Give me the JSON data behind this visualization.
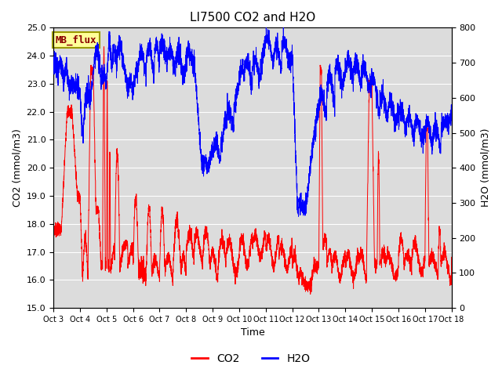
{
  "title": "LI7500 CO2 and H2O",
  "xlabel": "Time",
  "ylabel_left": "CO2 (mmol/m3)",
  "ylabel_right": "H2O (mmol/m3)",
  "annotation": "MB_flux",
  "xlim_days": [
    0,
    15
  ],
  "ylim_left": [
    15.0,
    25.0
  ],
  "ylim_right": [
    0,
    800
  ],
  "yticks_left": [
    15.0,
    16.0,
    17.0,
    18.0,
    19.0,
    20.0,
    21.0,
    22.0,
    23.0,
    24.0,
    25.0
  ],
  "yticks_right": [
    0,
    100,
    200,
    300,
    400,
    500,
    600,
    700,
    800
  ],
  "xtick_labels": [
    "Oct 3",
    "Oct 4",
    "Oct 5",
    "Oct 6",
    "Oct 7",
    "Oct 8",
    "Oct 9",
    "Oct 10",
    "Oct 11",
    "Oct 12",
    "Oct 13",
    "Oct 14",
    "Oct 15",
    "Oct 16",
    "Oct 17",
    "Oct 18"
  ],
  "color_co2": "#FF0000",
  "color_h2o": "#0000FF",
  "background_color": "#DCDCDC",
  "fig_background": "#FFFFFF",
  "grid_color": "#FFFFFF",
  "annotation_bg": "#FFFF99",
  "annotation_border": "#999900",
  "title_fontsize": 11,
  "axis_fontsize": 9,
  "tick_fontsize": 8,
  "legend_fontsize": 10
}
